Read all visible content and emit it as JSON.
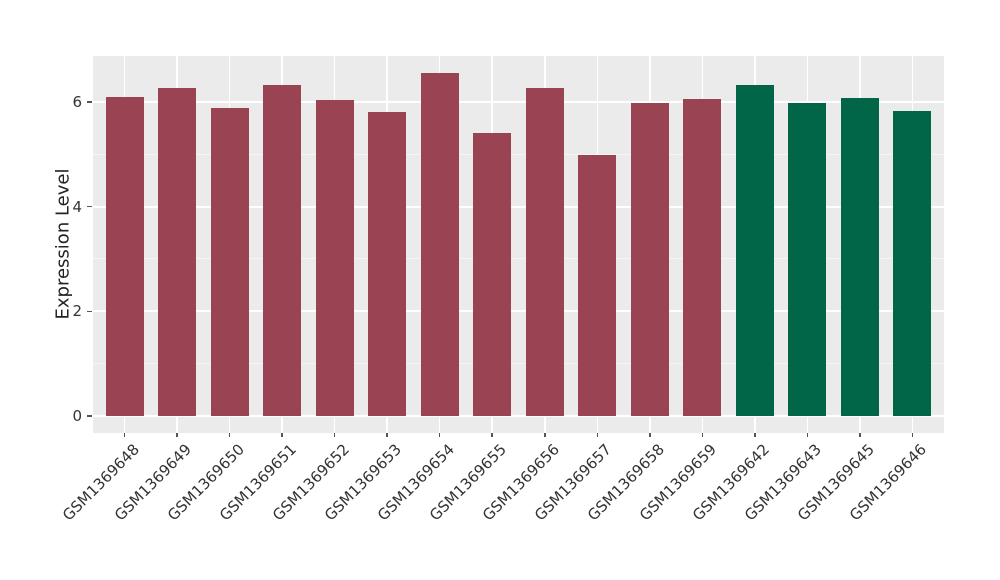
{
  "chart_data": {
    "type": "bar",
    "title": "",
    "xlabel": "",
    "ylabel": "Expression Level",
    "categories": [
      "GSM1369648",
      "GSM1369649",
      "GSM1369650",
      "GSM1369651",
      "GSM1369652",
      "GSM1369653",
      "GSM1369654",
      "GSM1369655",
      "GSM1369656",
      "GSM1369657",
      "GSM1369658",
      "GSM1369659",
      "GSM1369642",
      "GSM1369643",
      "GSM1369645",
      "GSM1369646"
    ],
    "bars": [
      {
        "label": "GSM1369648",
        "value": 6.1,
        "group": "group1"
      },
      {
        "label": "GSM1369649",
        "value": 6.27,
        "group": "group1"
      },
      {
        "label": "GSM1369650",
        "value": 5.89,
        "group": "group1"
      },
      {
        "label": "GSM1369651",
        "value": 6.32,
        "group": "group1"
      },
      {
        "label": "GSM1369652",
        "value": 6.03,
        "group": "group1"
      },
      {
        "label": "GSM1369653",
        "value": 5.8,
        "group": "group1"
      },
      {
        "label": "GSM1369654",
        "value": 6.55,
        "group": "group1"
      },
      {
        "label": "GSM1369655",
        "value": 5.4,
        "group": "group1"
      },
      {
        "label": "GSM1369656",
        "value": 6.26,
        "group": "group1"
      },
      {
        "label": "GSM1369657",
        "value": 4.98,
        "group": "group1"
      },
      {
        "label": "GSM1369658",
        "value": 5.98,
        "group": "group1"
      },
      {
        "label": "GSM1369659",
        "value": 6.05,
        "group": "group1"
      },
      {
        "label": "GSM1369642",
        "value": 6.32,
        "group": "group2"
      },
      {
        "label": "GSM1369643",
        "value": 5.99,
        "group": "group2"
      },
      {
        "label": "GSM1369645",
        "value": 6.07,
        "group": "group2"
      },
      {
        "label": "GSM1369646",
        "value": 5.82,
        "group": "group2"
      }
    ],
    "group_colors": {
      "group1": "#9A4453",
      "group2": "#016648"
    },
    "yticks": [
      0,
      2,
      4,
      6
    ],
    "ytick_labels": [
      "0",
      "2",
      "4",
      "6"
    ],
    "minor_yticks": [
      1,
      3,
      5
    ],
    "ylim": [
      -0.325,
      6.879
    ],
    "grid": "white major and minor horizontal lines, white vertical lines at each category, on grey panel",
    "legend": null
  },
  "style": {
    "figure_bg": "#FFFFFF",
    "panel_bg": "#EBEBEB",
    "grid_major_color": "#FFFFFF",
    "grid_minor_color": "#F7F7F7",
    "tick_color": "#555555",
    "tick_label_color": "#333333",
    "axis_title_color": "#222222"
  }
}
